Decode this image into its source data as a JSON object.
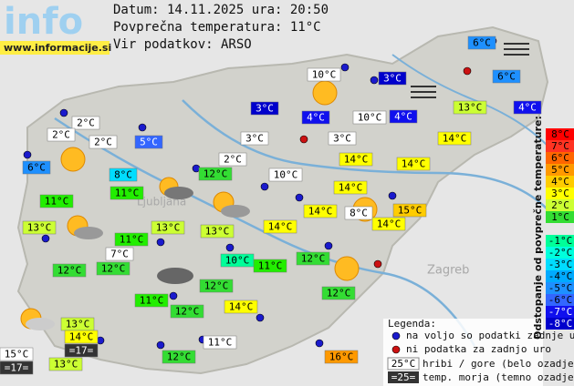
{
  "header": {
    "logo": "info",
    "site": "www.informacije.si",
    "date_line": "Datum: 14.11.2025 ura: 20:50",
    "avg_temp": "Povprečna temperatura: 11°C",
    "source": "Vir podatkov: ARSO"
  },
  "map_labels": [
    "Ljubljana",
    "Zagreb"
  ],
  "stations": [
    {
      "label": "6°C",
      "color": "#1e90ff",
      "text_color": "#000000"
    },
    {
      "label": "6°C",
      "color": "#1e90ff",
      "text_color": "#000000"
    },
    {
      "label": "3°C",
      "color": "#0000cc",
      "text_color": "#ffffff"
    },
    {
      "label": "4°C",
      "color": "#1010ee",
      "text_color": "#ffffff"
    },
    {
      "label": "13°C",
      "color": "#ccff33",
      "text_color": "#000000"
    },
    {
      "label": "4°C",
      "color": "#1010ee",
      "text_color": "#ffffff"
    },
    {
      "label": "10°C",
      "color": "#ffffff",
      "text_color": "#000000"
    },
    {
      "label": "3°C",
      "color": "#0000cc",
      "text_color": "#ffffff"
    },
    {
      "label": "4°C",
      "color": "#1010ee",
      "text_color": "#ffffff"
    },
    {
      "label": "10°C",
      "color": "#ffffff",
      "text_color": "#000000"
    },
    {
      "label": "3°C",
      "color": "#ffffff",
      "text_color": "#000000"
    },
    {
      "label": "14°C",
      "color": "#ffff00",
      "text_color": "#000000"
    },
    {
      "label": "14°C",
      "color": "#ffff00",
      "text_color": "#000000"
    },
    {
      "label": "14°C",
      "color": "#ffff00",
      "text_color": "#000000"
    },
    {
      "label": "14°C",
      "color": "#ffff00",
      "text_color": "#000000"
    },
    {
      "label": "15°C",
      "color": "#ffcc00",
      "text_color": "#000000"
    },
    {
      "label": "8°C",
      "color": "#ffffff",
      "text_color": "#000000"
    },
    {
      "label": "14°C",
      "color": "#ffff00",
      "text_color": "#000000"
    },
    {
      "label": "14°C",
      "color": "#ffff00",
      "text_color": "#000000"
    },
    {
      "label": "14°C",
      "color": "#ffff00",
      "text_color": "#000000"
    },
    {
      "label": "10°C",
      "color": "#ffffff",
      "text_color": "#000000"
    },
    {
      "label": "2°C",
      "color": "#ffffff",
      "text_color": "#000000"
    },
    {
      "label": "3°C",
      "color": "#ffffff",
      "text_color": "#000000"
    },
    {
      "label": "12°C",
      "color": "#33dd33",
      "text_color": "#000000"
    },
    {
      "label": "8°C",
      "color": "#00ddff",
      "text_color": "#000000"
    },
    {
      "label": "11°C",
      "color": "#22ee00",
      "text_color": "#000000"
    },
    {
      "label": "5°C",
      "color": "#3366ff",
      "text_color": "#ffffff"
    },
    {
      "label": "2°C",
      "color": "#ffffff",
      "text_color": "#000000"
    },
    {
      "label": "2°C",
      "color": "#ffffff",
      "text_color": "#000000"
    },
    {
      "label": "2°C",
      "color": "#ffffff",
      "text_color": "#000000"
    },
    {
      "label": "6°C",
      "color": "#1e90ff",
      "text_color": "#000000"
    },
    {
      "label": "11°C",
      "color": "#22ee00",
      "text_color": "#000000"
    },
    {
      "label": "13°C",
      "color": "#ccff33",
      "text_color": "#000000"
    },
    {
      "label": "13°C",
      "color": "#ccff33",
      "text_color": "#000000"
    },
    {
      "label": "13°C",
      "color": "#ccff33",
      "text_color": "#000000"
    },
    {
      "label": "11°C",
      "color": "#22ee00",
      "text_color": "#000000"
    },
    {
      "label": "7°C",
      "color": "#ffffff",
      "text_color": "#000000"
    },
    {
      "label": "12°C",
      "color": "#33dd33",
      "text_color": "#000000"
    },
    {
      "label": "12°C",
      "color": "#33dd33",
      "text_color": "#000000"
    },
    {
      "label": "10°C",
      "color": "#00ff99",
      "text_color": "#000000"
    },
    {
      "label": "11°C",
      "color": "#22ee00",
      "text_color": "#000000"
    },
    {
      "label": "12°C",
      "color": "#33dd33",
      "text_color": "#000000"
    },
    {
      "label": "12°C",
      "color": "#33dd33",
      "text_color": "#000000"
    },
    {
      "label": "12°C",
      "color": "#33dd33",
      "text_color": "#000000"
    },
    {
      "label": "11°C",
      "color": "#22ee00",
      "text_color": "#000000"
    },
    {
      "label": "12°C",
      "color": "#33dd33",
      "text_color": "#000000"
    },
    {
      "label": "14°C",
      "color": "#ffff00",
      "text_color": "#000000"
    },
    {
      "label": "11°C",
      "color": "#ffffff",
      "text_color": "#000000"
    },
    {
      "label": "12°C",
      "color": "#33dd33",
      "text_color": "#000000"
    },
    {
      "label": "16°C",
      "color": "#ff9900",
      "text_color": "#000000"
    },
    {
      "label": "13°C",
      "color": "#ccff33",
      "text_color": "#000000"
    },
    {
      "label": "14°C",
      "color": "#ffff00",
      "text_color": "#000000"
    },
    {
      "label": "=17=",
      "color": "#333333",
      "text_color": "#ffffff"
    },
    {
      "label": "15°C",
      "color": "#ffffff",
      "text_color": "#000000"
    },
    {
      "label": "=17=",
      "color": "#333333",
      "text_color": "#ffffff"
    },
    {
      "label": "13°C",
      "color": "#ccff33",
      "text_color": "#000000"
    }
  ],
  "legend": {
    "title": "Legenda:",
    "available": "na voljo so podatki zadnje ure",
    "missing": "ni podatka za zadnjo uro",
    "hill_sample": "25°C",
    "hill_text": "hribi / gore (belo ozadje)",
    "sea_sample": "=25=",
    "sea_text": "temp. morja (temno ozadje)"
  },
  "scale": {
    "title": "Odstopanje od povprečne temperature:",
    "items": [
      {
        "label": "8°C",
        "color": "#ff0000"
      },
      {
        "label": "7°C",
        "color": "#ff3322"
      },
      {
        "label": "6°C",
        "color": "#ff6600"
      },
      {
        "label": "5°C",
        "color": "#ff9900"
      },
      {
        "label": "4°C",
        "color": "#ffcc00"
      },
      {
        "label": "3°C",
        "color": "#ffff00"
      },
      {
        "label": "2°C",
        "color": "#ccff33"
      },
      {
        "label": "1°C",
        "color": "#33dd33"
      },
      {
        "label": "-1°C",
        "color": "#00ff99"
      },
      {
        "label": "-2°C",
        "color": "#00ffdd"
      },
      {
        "label": "-3°C",
        "color": "#00ddff"
      },
      {
        "label": "-4°C",
        "color": "#00aaff"
      },
      {
        "label": "-5°C",
        "color": "#1e90ff"
      },
      {
        "label": "-6°C",
        "color": "#3366ff"
      },
      {
        "label": "-7°C",
        "color": "#1010ee"
      },
      {
        "label": "-8°C",
        "color": "#0000cc"
      }
    ]
  }
}
